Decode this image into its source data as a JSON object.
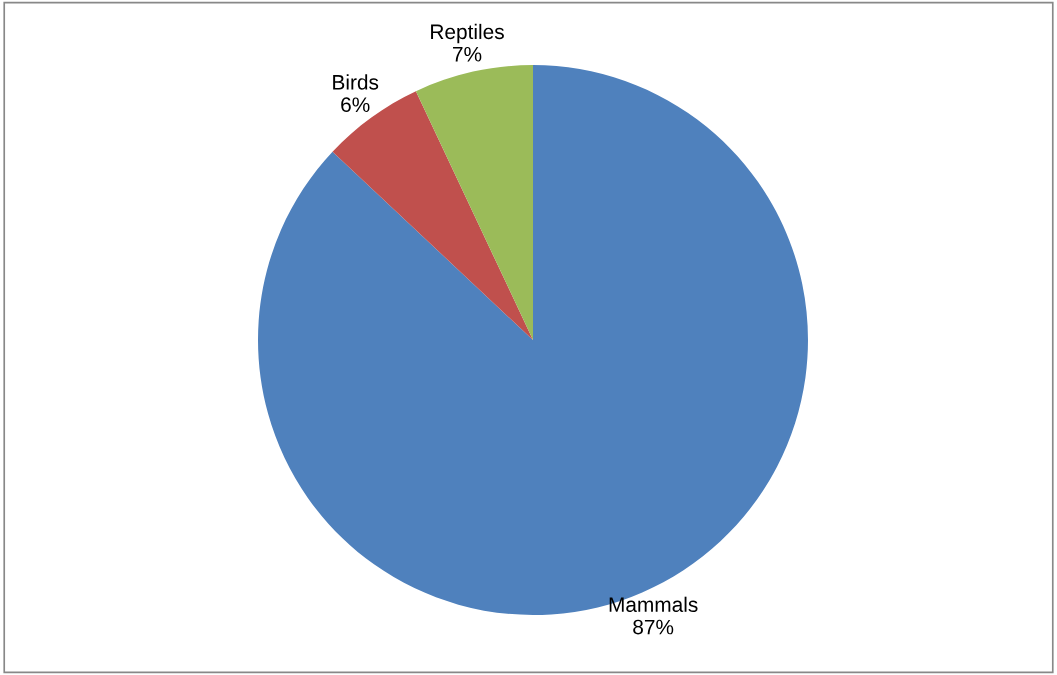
{
  "chart_data": {
    "type": "pie",
    "categories": [
      "Mammals",
      "Birds",
      "Reptiles"
    ],
    "values": [
      87,
      6,
      7
    ],
    "colors": [
      "#4f81bd",
      "#c0504d",
      "#9bbb59"
    ],
    "value_labels": [
      "87%",
      "6%",
      "7%"
    ],
    "legend": false
  }
}
